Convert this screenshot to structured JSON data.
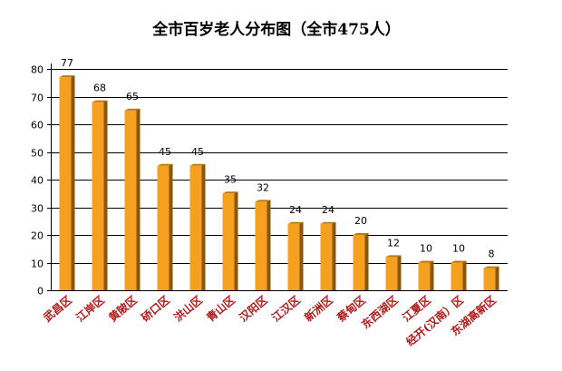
{
  "chart_data": {
    "type": "bar",
    "title": "全市百岁老人分布图（全市475人）",
    "categories": [
      "武昌区",
      "江岸区",
      "黄陂区",
      "硚口区",
      "洪山区",
      "青山区",
      "汉阳区",
      "江汉区",
      "新洲区",
      "蔡甸区",
      "东西湖区",
      "江夏区",
      "经开(汉南）区",
      "东湖高新区"
    ],
    "values": [
      77,
      68,
      65,
      45,
      45,
      35,
      32,
      24,
      24,
      20,
      12,
      10,
      10,
      8
    ],
    "data_labels": [
      "77",
      "68",
      "65",
      "45",
      "45",
      "35",
      "32",
      "24",
      "24",
      "20",
      "12",
      "10",
      "10",
      "8"
    ],
    "yticks": [
      "0",
      "10",
      "20",
      "30",
      "40",
      "50",
      "60",
      "70",
      "80"
    ],
    "ylim": [
      0,
      80
    ],
    "xlabel": "",
    "ylabel": "",
    "grid": true,
    "legend": "none",
    "colors": {
      "bar_front": "#f5a01e",
      "bar_side": "#8a5608",
      "bar_top": "#b87818",
      "grid": "#000000",
      "category_text": "#b01818",
      "background": "#ffffff"
    }
  }
}
